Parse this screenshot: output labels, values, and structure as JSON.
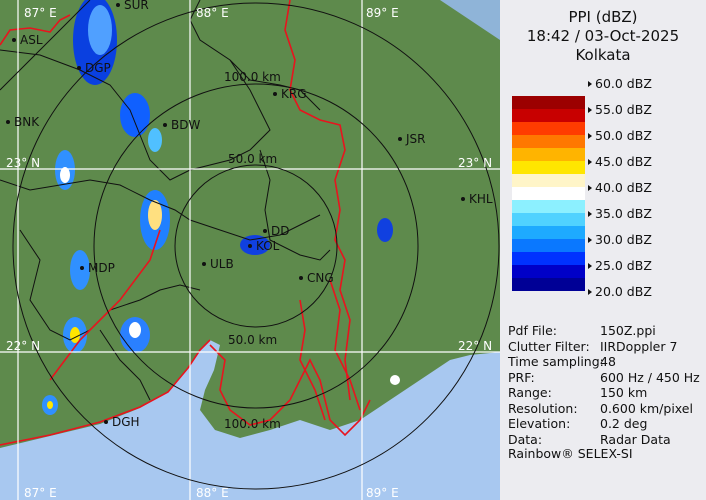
{
  "header": {
    "product": "PPI (dBZ)",
    "datetime": "18:42 / 03-Oct-2025",
    "site": "Kolkata"
  },
  "legend": {
    "ticks": [
      "60.0 dBZ",
      "55.0 dBZ",
      "50.0 dBZ",
      "45.0 dBZ",
      "40.0 dBZ",
      "35.0 dBZ",
      "30.0 dBZ",
      "25.0 dBZ",
      "20.0 dBZ"
    ],
    "colors": [
      "#9c0000",
      "#c80000",
      "#ff3c00",
      "#ff7800",
      "#ffb400",
      "#ffe600",
      "#fff5c8",
      "#ffffff",
      "#8cf0ff",
      "#50d2ff",
      "#1eaaff",
      "#0a78ff",
      "#0032ff",
      "#0000c8",
      "#000096"
    ]
  },
  "info": [
    {
      "key": "Pdf File:",
      "value": "150Z.ppi"
    },
    {
      "key": "Clutter Filter:",
      "value": "IIRDoppler 7"
    },
    {
      "key": "Time sampling:",
      "value": "48"
    },
    {
      "key": "PRF:",
      "value": "600 Hz / 450 Hz"
    },
    {
      "key": "Range:",
      "value": "150 km"
    },
    {
      "key": "Resolution:",
      "value": "0.600 km/pixel"
    },
    {
      "key": "Elevation:",
      "value": "0.2 deg"
    },
    {
      "key": "Data:",
      "value": "Radar Data"
    }
  ],
  "footer": "Rainbow® SELEX-SI",
  "map": {
    "colors": {
      "land": "#5e8a4c",
      "sea": "#a8c8f0",
      "border": "#e8141e",
      "district": "#111111",
      "grid": "#ffffff"
    },
    "grid_labels": {
      "lon_top": [
        "87° E",
        "88° E",
        "89° E"
      ],
      "lon_bottom": [
        "87° E",
        "88° E",
        "89° E"
      ],
      "lat_left": [
        "23° N",
        "22° N"
      ],
      "lat_right": [
        "23° N",
        "22° N"
      ]
    },
    "ring_labels": {
      "r50_top": "50.0 km",
      "r100_top": "100.0 km",
      "r50_bottom": "50.0 km",
      "r100_bottom": "100.0 km"
    },
    "cities": [
      "SUR",
      "ASL",
      "DGP",
      "BNK",
      "BDW",
      "KRG",
      "JSR",
      "KHL",
      "MDP",
      "ULB",
      "DD",
      "KOL",
      "CNG",
      "DGH"
    ]
  }
}
